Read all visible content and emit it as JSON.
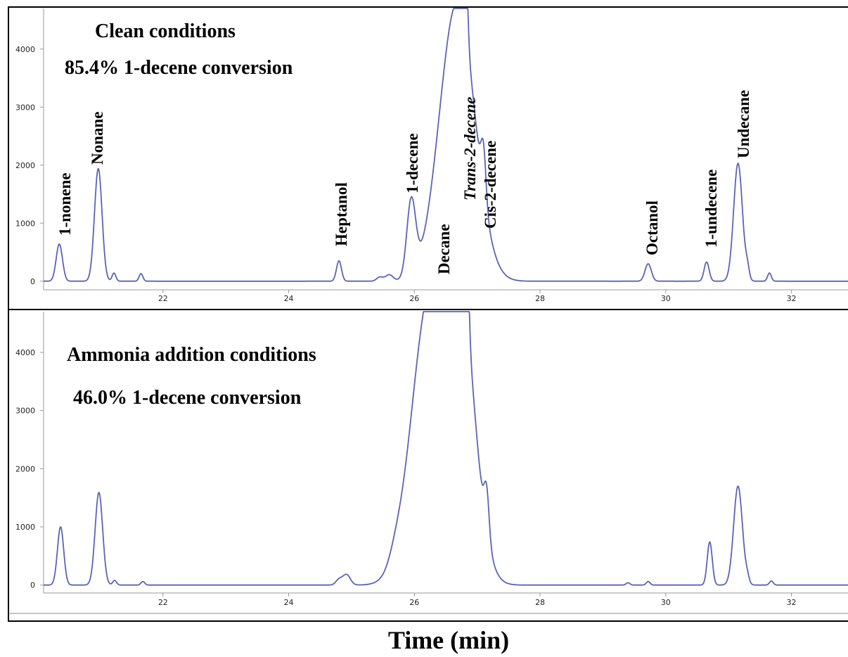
{
  "chart_data": [
    {
      "type": "line",
      "color": "#5b63b7",
      "xlim": [
        20.1,
        32.9
      ],
      "ylim": [
        -100,
        4700
      ],
      "x_ticks": [
        "22",
        "24",
        "26",
        "28",
        "30",
        "32"
      ],
      "y_ticks": [
        "0",
        "1000",
        "2000",
        "3000",
        "4000"
      ],
      "annotations": [
        "Clean conditions",
        "85.4% 1-decene conversion"
      ],
      "peaks": [
        {
          "label": "1-nonene",
          "time": 20.35,
          "height": 640,
          "width": 0.05
        },
        {
          "label": "Nonane",
          "time": 20.97,
          "height": 1940,
          "width": 0.06
        },
        {
          "label": "",
          "time": 21.22,
          "height": 140,
          "width": 0.03
        },
        {
          "label": "",
          "time": 21.65,
          "height": 130,
          "width": 0.03
        },
        {
          "label": "Heptanol",
          "time": 24.8,
          "height": 350,
          "width": 0.04
        },
        {
          "label": "",
          "time": 25.45,
          "height": 70,
          "width": 0.05
        },
        {
          "label": "",
          "time": 25.6,
          "height": 110,
          "width": 0.06
        },
        {
          "label": "1-decene",
          "time": 25.95,
          "height": 1290,
          "width": 0.07
        },
        {
          "label": "Decane",
          "time": 26.68,
          "height": 4800,
          "width": 0.28
        },
        {
          "label": "Trans-2-decene",
          "time": 26.82,
          "height": 1250,
          "width": 0.03
        },
        {
          "label": "Cis-2-decene",
          "time": 27.1,
          "height": 830,
          "width": 0.04
        },
        {
          "label": "Octanol",
          "time": 29.72,
          "height": 300,
          "width": 0.05
        },
        {
          "label": "1-undecene",
          "time": 30.65,
          "height": 330,
          "width": 0.04
        },
        {
          "label": "Undecane",
          "time": 31.15,
          "height": 2030,
          "width": 0.07
        },
        {
          "label": "",
          "time": 31.3,
          "height": 180,
          "width": 0.03
        },
        {
          "label": "",
          "time": 31.65,
          "height": 140,
          "width": 0.03
        }
      ]
    },
    {
      "type": "line",
      "color": "#5b63b7",
      "xlim": [
        20.1,
        32.9
      ],
      "ylim": [
        -100,
        4700
      ],
      "x_ticks": [
        "22",
        "24",
        "26",
        "28",
        "30",
        "32"
      ],
      "y_ticks": [
        "0",
        "1000",
        "2000",
        "3000",
        "4000"
      ],
      "annotations": [
        "Ammonia addition conditions",
        "46.0% 1-decene conversion"
      ],
      "peaks": [
        {
          "label": "",
          "time": 20.37,
          "height": 1000,
          "width": 0.05
        },
        {
          "label": "",
          "time": 20.98,
          "height": 1590,
          "width": 0.06
        },
        {
          "label": "",
          "time": 21.23,
          "height": 80,
          "width": 0.03
        },
        {
          "label": "",
          "time": 21.68,
          "height": 60,
          "width": 0.03
        },
        {
          "label": "",
          "time": 24.8,
          "height": 90,
          "width": 0.05
        },
        {
          "label": "",
          "time": 24.92,
          "height": 180,
          "width": 0.06
        },
        {
          "label": "",
          "time": 25.7,
          "height": 150,
          "width": 0.1
        },
        {
          "label": "",
          "time": 26.22,
          "height": 4600,
          "width": 0.28
        },
        {
          "label": "",
          "time": 26.72,
          "height": 4700,
          "width": 0.24
        },
        {
          "label": "",
          "time": 26.84,
          "height": 1180,
          "width": 0.03
        },
        {
          "label": "",
          "time": 27.15,
          "height": 760,
          "width": 0.04
        },
        {
          "label": "",
          "time": 29.4,
          "height": 40,
          "width": 0.03
        },
        {
          "label": "",
          "time": 29.72,
          "height": 60,
          "width": 0.03
        },
        {
          "label": "",
          "time": 30.7,
          "height": 740,
          "width": 0.04
        },
        {
          "label": "",
          "time": 31.15,
          "height": 1700,
          "width": 0.07
        },
        {
          "label": "",
          "time": 31.3,
          "height": 90,
          "width": 0.03
        },
        {
          "label": "",
          "time": 31.68,
          "height": 70,
          "width": 0.03
        }
      ]
    }
  ],
  "xlabel": "Time  (min)"
}
